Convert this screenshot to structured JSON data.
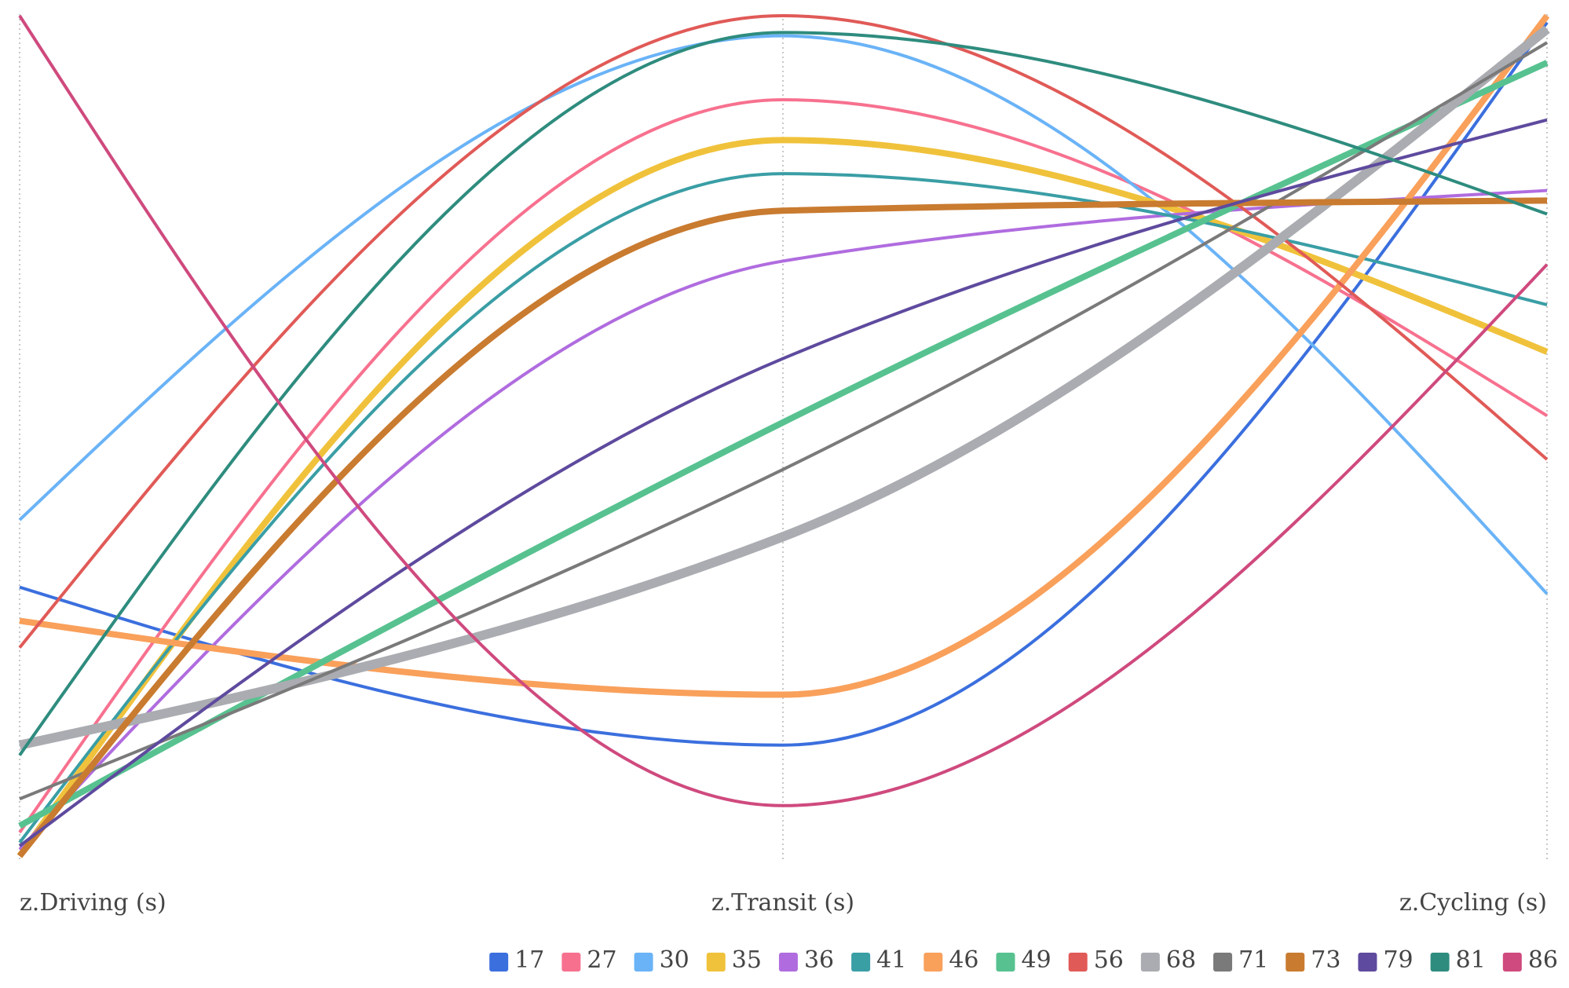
{
  "chart_data": {
    "type": "line",
    "subtype": "parallel-coordinates",
    "title": "",
    "dimensions": [
      "z.Driving (s)",
      "z.Transit (s)",
      "z.Cycling (s)"
    ],
    "y_range": [
      -1.5,
      1.0
    ],
    "grid": "vertical dotted axis lines",
    "legend_position": "bottom-right",
    "series": [
      {
        "name": "17",
        "color": "#3b6fde",
        "emphasis": "normal",
        "values": [
          -0.7,
          -1.17,
          0.98
        ]
      },
      {
        "name": "27",
        "color": "#f7718f",
        "emphasis": "normal",
        "values": [
          -1.43,
          0.75,
          -0.19
        ]
      },
      {
        "name": "30",
        "color": "#6ab3f7",
        "emphasis": "normal",
        "values": [
          -0.5,
          0.94,
          -0.72
        ]
      },
      {
        "name": "35",
        "color": "#f0c23b",
        "emphasis": "bold",
        "values": [
          -1.5,
          0.63,
          0.0
        ]
      },
      {
        "name": "36",
        "color": "#b06cdf",
        "emphasis": "normal",
        "values": [
          -1.48,
          0.27,
          0.48
        ]
      },
      {
        "name": "41",
        "color": "#3a9ea5",
        "emphasis": "normal",
        "values": [
          -1.46,
          0.53,
          0.14
        ]
      },
      {
        "name": "46",
        "color": "#f9a05b",
        "emphasis": "bold",
        "values": [
          -0.8,
          -1.02,
          1.0
        ]
      },
      {
        "name": "49",
        "color": "#57c290",
        "emphasis": "bold",
        "values": [
          -1.41,
          -0.21,
          0.86
        ]
      },
      {
        "name": "56",
        "color": "#e05a57",
        "emphasis": "normal",
        "values": [
          -0.88,
          1.0,
          -0.32
        ]
      },
      {
        "name": "68",
        "color": "#aaacb1",
        "emphasis": "extra",
        "values": [
          -1.17,
          -0.55,
          0.96
        ]
      },
      {
        "name": "71",
        "color": "#7a7a7a",
        "emphasis": "normal",
        "values": [
          -1.33,
          -0.35,
          0.92
        ]
      },
      {
        "name": "73",
        "color": "#c97b30",
        "emphasis": "bold",
        "values": [
          -1.5,
          0.42,
          0.45
        ]
      },
      {
        "name": "79",
        "color": "#5e4a9e",
        "emphasis": "normal",
        "values": [
          -1.47,
          -0.02,
          0.69
        ]
      },
      {
        "name": "81",
        "color": "#2e8c7e",
        "emphasis": "normal",
        "values": [
          -1.2,
          0.95,
          0.41
        ]
      },
      {
        "name": "86",
        "color": "#cf4a7e",
        "emphasis": "normal",
        "values": [
          1.0,
          -1.35,
          0.26
        ]
      }
    ]
  }
}
